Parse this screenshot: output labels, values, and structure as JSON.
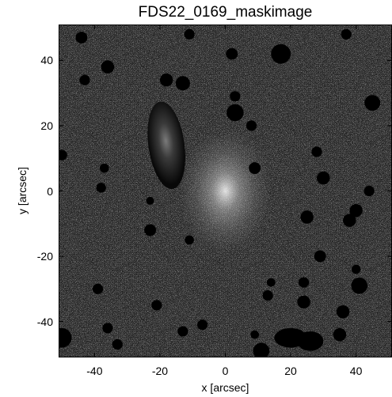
{
  "title": "FDS22_0169_maskimage",
  "xlabel": "x [arcsec]",
  "ylabel": "y [arcsec]",
  "x_range": [
    -51,
    51
  ],
  "y_range": [
    -51,
    51
  ],
  "x_ticks": [
    "-40",
    "-20",
    "0",
    "20",
    "40"
  ],
  "y_ticks": [
    "40",
    "20",
    "0",
    "-20",
    "-40"
  ],
  "x_tick_values": [
    -40,
    -20,
    0,
    20,
    40
  ],
  "y_tick_values": [
    40,
    20,
    0,
    -20,
    -40
  ],
  "colormap": "grayscale",
  "colors": {
    "background": "#262626",
    "noise": "#8c8c8c",
    "mask": "#000000"
  },
  "central_galaxy": {
    "x": 0,
    "y": 0
  },
  "bright_source": {
    "x": -18,
    "y": 14,
    "a": 5.5,
    "b": 13.5
  },
  "masked_sources": [
    {
      "x": -44,
      "y": 47,
      "r": 1.8
    },
    {
      "x": -36,
      "y": 38,
      "r": 2.0
    },
    {
      "x": -43,
      "y": 34,
      "r": 1.6
    },
    {
      "x": -11,
      "y": 48,
      "r": 1.6
    },
    {
      "x": -18,
      "y": 34,
      "r": 2.0
    },
    {
      "x": -13,
      "y": 33,
      "r": 2.2
    },
    {
      "x": 2,
      "y": 42,
      "r": 1.8
    },
    {
      "x": 17,
      "y": 42,
      "r": 3.0
    },
    {
      "x": 37,
      "y": 48,
      "r": 1.6
    },
    {
      "x": 45,
      "y": 27,
      "r": 2.4
    },
    {
      "x": 3,
      "y": 29,
      "r": 1.6
    },
    {
      "x": 3,
      "y": 24,
      "r": 2.6
    },
    {
      "x": 8,
      "y": 20,
      "r": 1.6
    },
    {
      "x": -37,
      "y": 7,
      "r": 1.4
    },
    {
      "x": 9,
      "y": 7,
      "r": 1.8
    },
    {
      "x": 28,
      "y": 12,
      "r": 1.6
    },
    {
      "x": 30,
      "y": 4,
      "r": 2.0
    },
    {
      "x": -50,
      "y": 11,
      "r": 1.6
    },
    {
      "x": 44,
      "y": 0,
      "r": 1.6
    },
    {
      "x": -38,
      "y": 1,
      "r": 1.5
    },
    {
      "x": 40,
      "y": -6,
      "r": 2.0
    },
    {
      "x": 38,
      "y": -9,
      "r": 2.0
    },
    {
      "x": 25,
      "y": -8,
      "r": 2.0
    },
    {
      "x": -23,
      "y": -3,
      "r": 1.2
    },
    {
      "x": -23,
      "y": -12,
      "r": 1.8
    },
    {
      "x": -11,
      "y": -15,
      "r": 1.4
    },
    {
      "x": 29,
      "y": -20,
      "r": 1.8
    },
    {
      "x": 40,
      "y": -24,
      "r": 1.4
    },
    {
      "x": 41,
      "y": -29,
      "r": 2.5
    },
    {
      "x": 24,
      "y": -28,
      "r": 1.6
    },
    {
      "x": 14,
      "y": -28,
      "r": 1.3
    },
    {
      "x": -39,
      "y": -30,
      "r": 1.6
    },
    {
      "x": -21,
      "y": -35,
      "r": 1.6
    },
    {
      "x": 13,
      "y": -32,
      "r": 1.6
    },
    {
      "x": 24,
      "y": -34,
      "r": 2.0
    },
    {
      "x": 36,
      "y": -37,
      "r": 2.0
    },
    {
      "x": -7,
      "y": -41,
      "r": 1.6
    },
    {
      "x": 9,
      "y": -44,
      "r": 1.3
    },
    {
      "x": -50,
      "y": -45,
      "r": 3.0
    },
    {
      "x": -36,
      "y": -42,
      "r": 1.6
    },
    {
      "x": -33,
      "y": -47,
      "r": 1.6
    },
    {
      "x": -13,
      "y": -43,
      "r": 1.6
    },
    {
      "x": 35,
      "y": -44,
      "r": 2.0
    },
    {
      "x": 11,
      "y": -49,
      "r": 2.5
    }
  ],
  "masked_blend": [
    {
      "x": 20,
      "y": -45,
      "rx": 5.0,
      "ry": 3.0
    },
    {
      "x": 26,
      "y": -46,
      "rx": 4.0,
      "ry": 3.0
    }
  ]
}
